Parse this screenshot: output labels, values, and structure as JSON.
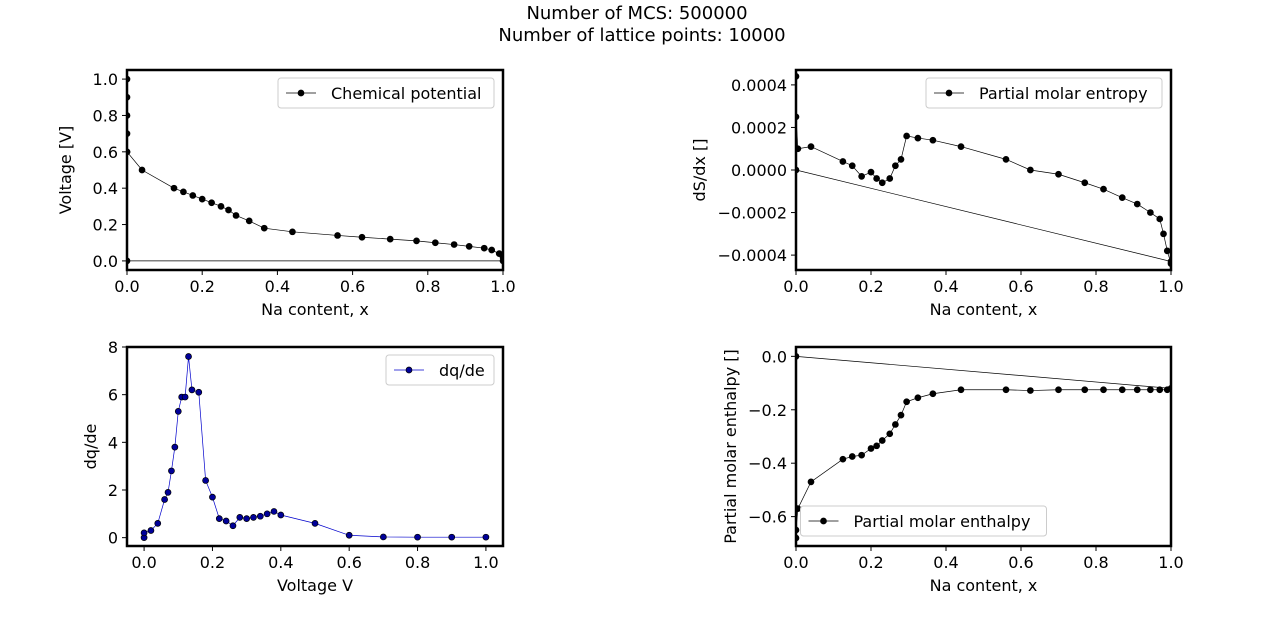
{
  "figure": {
    "title_line1": "Number of MCS: 500000",
    "title_line2": "Number of lattice points: 10000"
  },
  "chart_data": [
    {
      "id": "chem",
      "type": "line",
      "xlabel": "Na content, x",
      "ylabel": "Voltage [V]",
      "xlim": [
        0.0,
        1.0
      ],
      "ylim": [
        -0.05,
        1.05
      ],
      "xticks": [
        0.0,
        0.2,
        0.4,
        0.6,
        0.8,
        1.0
      ],
      "xtick_labels": [
        "0.0",
        "0.2",
        "0.4",
        "0.6",
        "0.8",
        "1.0"
      ],
      "yticks": [
        0.0,
        0.2,
        0.4,
        0.6,
        0.8,
        1.0
      ],
      "ytick_labels": [
        "0.0",
        "0.2",
        "0.4",
        "0.6",
        "0.8",
        "1.0"
      ],
      "legend": "top-right",
      "series": [
        {
          "name": "Chemical potential",
          "color": "#000000",
          "marker_fill": "#000000",
          "x": [
            0.0,
            0.0,
            0.0,
            0.0,
            0.0,
            0.0,
            0.04,
            0.125,
            0.15,
            0.175,
            0.2,
            0.225,
            0.25,
            0.27,
            0.29,
            0.325,
            0.365,
            0.44,
            0.56,
            0.625,
            0.7,
            0.77,
            0.82,
            0.87,
            0.91,
            0.95,
            0.97,
            0.99,
            1.0,
            1.0,
            0.0
          ],
          "y": [
            1.0,
            0.9,
            0.8,
            0.7,
            0.6,
            0.6,
            0.5,
            0.4,
            0.38,
            0.36,
            0.34,
            0.32,
            0.3,
            0.28,
            0.25,
            0.22,
            0.18,
            0.16,
            0.14,
            0.13,
            0.12,
            0.11,
            0.1,
            0.09,
            0.08,
            0.07,
            0.06,
            0.04,
            0.02,
            0.0,
            0.0
          ]
        }
      ]
    },
    {
      "id": "entropy",
      "type": "line",
      "xlabel": "Na content, x",
      "ylabel": "dS/dx []",
      "xlim": [
        0.0,
        1.0
      ],
      "ylim": [
        -0.00047,
        0.00047
      ],
      "xticks": [
        0.0,
        0.2,
        0.4,
        0.6,
        0.8,
        1.0
      ],
      "xtick_labels": [
        "0.0",
        "0.2",
        "0.4",
        "0.6",
        "0.8",
        "1.0"
      ],
      "yticks": [
        -0.0004,
        -0.0002,
        0.0,
        0.0002,
        0.0004
      ],
      "ytick_labels": [
        "−0.0004",
        "−0.0002",
        "0.0000",
        "0.0002",
        "0.0004"
      ],
      "legend": "top-right",
      "series": [
        {
          "name": "Partial molar entropy",
          "color": "#000000",
          "marker_fill": "#000000",
          "x": [
            0.0,
            0.0,
            0.005,
            0.04,
            0.125,
            0.15,
            0.175,
            0.2,
            0.215,
            0.23,
            0.25,
            0.265,
            0.28,
            0.295,
            0.325,
            0.365,
            0.44,
            0.56,
            0.625,
            0.7,
            0.77,
            0.82,
            0.87,
            0.91,
            0.945,
            0.97,
            0.98,
            0.99,
            1.0,
            1.0,
            0.0
          ],
          "y": [
            0.00044,
            0.00025,
            0.0001,
            0.00011,
            4e-05,
            2e-05,
            -3e-05,
            -1e-05,
            -4e-05,
            -6e-05,
            -4e-05,
            2e-05,
            5e-05,
            0.00016,
            0.00015,
            0.00014,
            0.00011,
            5e-05,
            0.0,
            -2e-05,
            -6e-05,
            -9e-05,
            -0.00013,
            -0.00016,
            -0.0002,
            -0.00023,
            -0.0003,
            -0.00038,
            -0.00044,
            -0.00043,
            0.0
          ]
        }
      ]
    },
    {
      "id": "dqde",
      "type": "line",
      "xlabel": "Voltage V",
      "ylabel": "dq/de",
      "xlim": [
        -0.05,
        1.05
      ],
      "ylim": [
        -0.35,
        8.0
      ],
      "xticks": [
        0.0,
        0.2,
        0.4,
        0.6,
        0.8,
        1.0
      ],
      "xtick_labels": [
        "0.0",
        "0.2",
        "0.4",
        "0.6",
        "0.8",
        "1.0"
      ],
      "yticks": [
        0,
        2,
        4,
        6,
        8
      ],
      "ytick_labels": [
        "0",
        "2",
        "4",
        "6",
        "8"
      ],
      "legend": "top-right",
      "series": [
        {
          "name": "dq/de",
          "color": "#0000cc",
          "marker_fill": "#000099",
          "x": [
            0.0,
            0.0,
            0.02,
            0.04,
            0.06,
            0.07,
            0.08,
            0.09,
            0.1,
            0.11,
            0.12,
            0.13,
            0.14,
            0.16,
            0.18,
            0.2,
            0.22,
            0.24,
            0.26,
            0.28,
            0.3,
            0.32,
            0.34,
            0.36,
            0.38,
            0.4,
            0.5,
            0.6,
            0.7,
            0.8,
            0.9,
            1.0
          ],
          "y": [
            0.0,
            0.2,
            0.3,
            0.6,
            1.6,
            1.9,
            2.8,
            3.8,
            5.3,
            5.9,
            5.9,
            7.6,
            6.2,
            6.1,
            2.4,
            1.7,
            0.8,
            0.7,
            0.5,
            0.85,
            0.8,
            0.85,
            0.9,
            1.0,
            1.1,
            0.95,
            0.6,
            0.1,
            0.03,
            0.02,
            0.02,
            0.02
          ]
        }
      ]
    },
    {
      "id": "enthalpy",
      "type": "line",
      "xlabel": "Na content, x",
      "ylabel": "Partial molar enthalpy []",
      "xlim": [
        0.0,
        1.0
      ],
      "ylim": [
        -0.71,
        0.035
      ],
      "xticks": [
        0.0,
        0.2,
        0.4,
        0.6,
        0.8,
        1.0
      ],
      "xtick_labels": [
        "0.0",
        "0.2",
        "0.4",
        "0.6",
        "0.8",
        "1.0"
      ],
      "yticks": [
        0.0,
        -0.2,
        -0.4,
        -0.6
      ],
      "ytick_labels": [
        "0.0",
        "−0.2",
        "−0.4",
        "−0.6"
      ],
      "legend": "bottom-center",
      "series": [
        {
          "name": "Partial molar enthalpy",
          "color": "#000000",
          "marker_fill": "#000000",
          "x": [
            0.0,
            0.0,
            0.005,
            0.04,
            0.125,
            0.15,
            0.175,
            0.2,
            0.215,
            0.23,
            0.25,
            0.265,
            0.28,
            0.295,
            0.325,
            0.365,
            0.44,
            0.56,
            0.625,
            0.7,
            0.77,
            0.82,
            0.87,
            0.91,
            0.945,
            0.97,
            0.99,
            1.0,
            0.0
          ],
          "y": [
            -0.68,
            -0.65,
            -0.57,
            -0.47,
            -0.385,
            -0.375,
            -0.37,
            -0.345,
            -0.335,
            -0.315,
            -0.29,
            -0.255,
            -0.22,
            -0.17,
            -0.155,
            -0.14,
            -0.125,
            -0.125,
            -0.128,
            -0.125,
            -0.125,
            -0.125,
            -0.125,
            -0.125,
            -0.125,
            -0.125,
            -0.125,
            -0.12,
            0.0
          ]
        }
      ]
    }
  ]
}
